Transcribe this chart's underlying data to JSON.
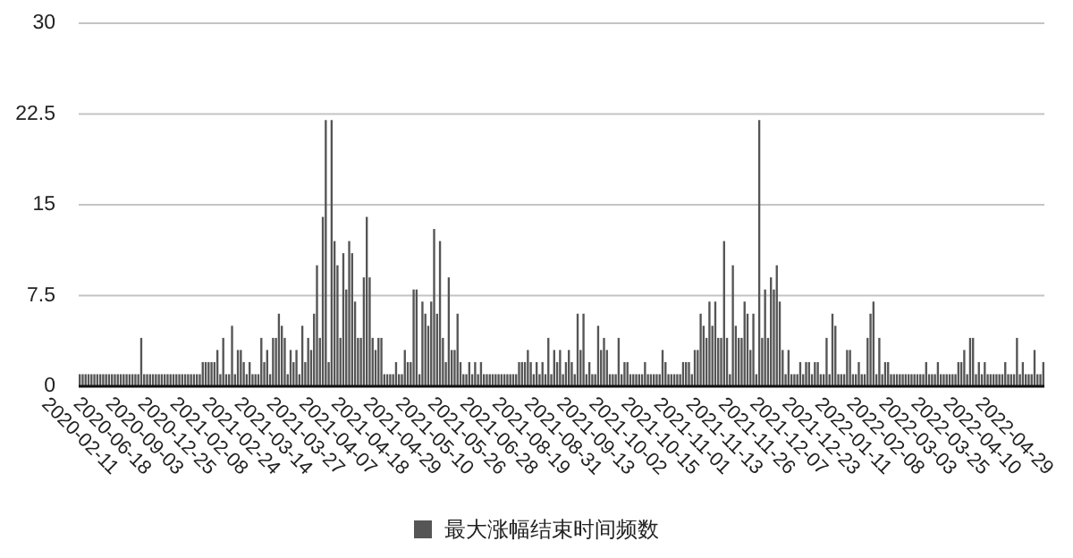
{
  "chart_data": {
    "type": "bar",
    "categories": [
      "2020-02-11",
      null,
      null,
      null,
      null,
      null,
      null,
      null,
      null,
      null,
      null,
      "2020-06-18",
      null,
      null,
      null,
      null,
      null,
      null,
      null,
      null,
      null,
      null,
      "2020-09-03",
      null,
      null,
      null,
      null,
      null,
      null,
      null,
      null,
      null,
      null,
      "2020-12-25",
      null,
      null,
      null,
      null,
      null,
      null,
      null,
      null,
      null,
      null,
      "2021-02-08",
      null,
      null,
      null,
      null,
      null,
      null,
      null,
      null,
      null,
      null,
      "2021-02-24",
      null,
      null,
      null,
      null,
      null,
      null,
      null,
      null,
      null,
      null,
      "2021-03-14",
      null,
      null,
      null,
      null,
      null,
      null,
      null,
      null,
      null,
      null,
      "2021-03-27",
      null,
      null,
      null,
      null,
      null,
      null,
      null,
      null,
      null,
      null,
      "2021-04-07",
      null,
      null,
      null,
      null,
      null,
      null,
      null,
      null,
      null,
      null,
      "2021-04-18",
      null,
      null,
      null,
      null,
      null,
      null,
      null,
      null,
      null,
      null,
      "2021-04-29",
      null,
      null,
      null,
      null,
      null,
      null,
      null,
      null,
      null,
      null,
      "2021-05-10",
      null,
      null,
      null,
      null,
      null,
      null,
      null,
      null,
      null,
      null,
      "2021-05-26",
      null,
      null,
      null,
      null,
      null,
      null,
      null,
      null,
      null,
      null,
      "2021-06-28",
      null,
      null,
      null,
      null,
      null,
      null,
      null,
      null,
      null,
      null,
      "2021-08-19",
      null,
      null,
      null,
      null,
      null,
      null,
      null,
      null,
      null,
      null,
      "2021-08-31",
      null,
      null,
      null,
      null,
      null,
      null,
      null,
      null,
      null,
      null,
      "2021-09-13",
      null,
      null,
      null,
      null,
      null,
      null,
      null,
      null,
      null,
      null,
      "2021-10-02",
      null,
      null,
      null,
      null,
      null,
      null,
      null,
      null,
      null,
      null,
      "2021-10-15",
      null,
      null,
      null,
      null,
      null,
      null,
      null,
      null,
      null,
      null,
      "2021-11-01",
      null,
      null,
      null,
      null,
      null,
      null,
      null,
      null,
      null,
      null,
      "2021-11-13",
      null,
      null,
      null,
      null,
      null,
      null,
      null,
      null,
      null,
      null,
      "2021-11-26",
      null,
      null,
      null,
      null,
      null,
      null,
      null,
      null,
      null,
      null,
      "2021-12-07",
      null,
      null,
      null,
      null,
      null,
      null,
      null,
      null,
      null,
      null,
      "2021-12-23",
      null,
      null,
      null,
      null,
      null,
      null,
      null,
      null,
      null,
      null,
      "2022-01-11",
      null,
      null,
      null,
      null,
      null,
      null,
      null,
      null,
      null,
      null,
      "2022-02-08",
      null,
      null,
      null,
      null,
      null,
      null,
      null,
      null,
      null,
      null,
      "2022-03-03",
      null,
      null,
      null,
      null,
      null,
      null,
      null,
      null,
      null,
      null,
      "2022-03-25",
      null,
      null,
      null,
      null,
      null,
      null,
      null,
      null,
      null,
      null,
      "2022-04-10",
      null,
      null,
      null,
      null,
      null,
      null,
      null,
      null,
      null,
      null,
      "2022-04-29",
      null,
      null,
      null,
      null,
      null,
      null,
      null,
      null,
      null,
      null
    ],
    "series": [
      {
        "name": "最大涨幅结束时间频数",
        "color": "#555555",
        "values": [
          1,
          1,
          1,
          1,
          1,
          1,
          1,
          1,
          1,
          1,
          1,
          1,
          1,
          1,
          1,
          1,
          1,
          1,
          1,
          1,
          1,
          4,
          1,
          1,
          1,
          1,
          1,
          1,
          1,
          1,
          1,
          1,
          1,
          1,
          1,
          1,
          1,
          1,
          1,
          1,
          1,
          1,
          2,
          2,
          2,
          2,
          2,
          3,
          1,
          4,
          1,
          1,
          5,
          1,
          3,
          3,
          2,
          1,
          2,
          1,
          1,
          1,
          4,
          2,
          3,
          1,
          4,
          4,
          6,
          5,
          4,
          1,
          3,
          2,
          3,
          1,
          5,
          2,
          4,
          3,
          6,
          10,
          4,
          14,
          22,
          2,
          22,
          12,
          10,
          4,
          11,
          8,
          12,
          11,
          7,
          4,
          4,
          9,
          14,
          9,
          4,
          3,
          4,
          4,
          1,
          1,
          1,
          1,
          2,
          1,
          1,
          3,
          2,
          2,
          8,
          8,
          1,
          7,
          6,
          5,
          7,
          13,
          6,
          12,
          4,
          2,
          9,
          3,
          3,
          6,
          2,
          1,
          1,
          2,
          1,
          2,
          1,
          2,
          1,
          1,
          1,
          1,
          1,
          1,
          1,
          1,
          1,
          1,
          1,
          1,
          2,
          2,
          2,
          3,
          2,
          1,
          2,
          1,
          2,
          1,
          4,
          1,
          3,
          2,
          3,
          1,
          2,
          3,
          2,
          1,
          6,
          3,
          6,
          1,
          2,
          1,
          1,
          5,
          3,
          4,
          3,
          1,
          1,
          1,
          4,
          1,
          2,
          2,
          1,
          1,
          1,
          1,
          1,
          2,
          1,
          1,
          1,
          1,
          1,
          3,
          2,
          1,
          1,
          1,
          1,
          1,
          2,
          2,
          2,
          1,
          3,
          3,
          6,
          5,
          4,
          7,
          5,
          7,
          4,
          4,
          12,
          4,
          1,
          10,
          5,
          4,
          4,
          7,
          6,
          3,
          6,
          1,
          22,
          4,
          8,
          4,
          9,
          8,
          10,
          7,
          3,
          1,
          3,
          1,
          1,
          1,
          2,
          1,
          2,
          2,
          1,
          2,
          2,
          1,
          1,
          4,
          1,
          6,
          5,
          1,
          1,
          1,
          3,
          3,
          1,
          1,
          2,
          1,
          1,
          4,
          6,
          7,
          1,
          4,
          1,
          2,
          2,
          1,
          1,
          1,
          1,
          1,
          1,
          1,
          1,
          1,
          1,
          1,
          1,
          2,
          1,
          1,
          1,
          2,
          1,
          1,
          1,
          1,
          1,
          1,
          2,
          2,
          3,
          1,
          4,
          4,
          1,
          2,
          1,
          2,
          1,
          1,
          1,
          1,
          1,
          1,
          2,
          1,
          1,
          1,
          4,
          1,
          2,
          1,
          1,
          1,
          3,
          1,
          1,
          2
        ]
      }
    ],
    "ylim": [
      0,
      30
    ],
    "yticks": [
      0,
      7.5,
      15,
      22.5,
      30
    ],
    "grid": "y",
    "legend": "bottom"
  }
}
